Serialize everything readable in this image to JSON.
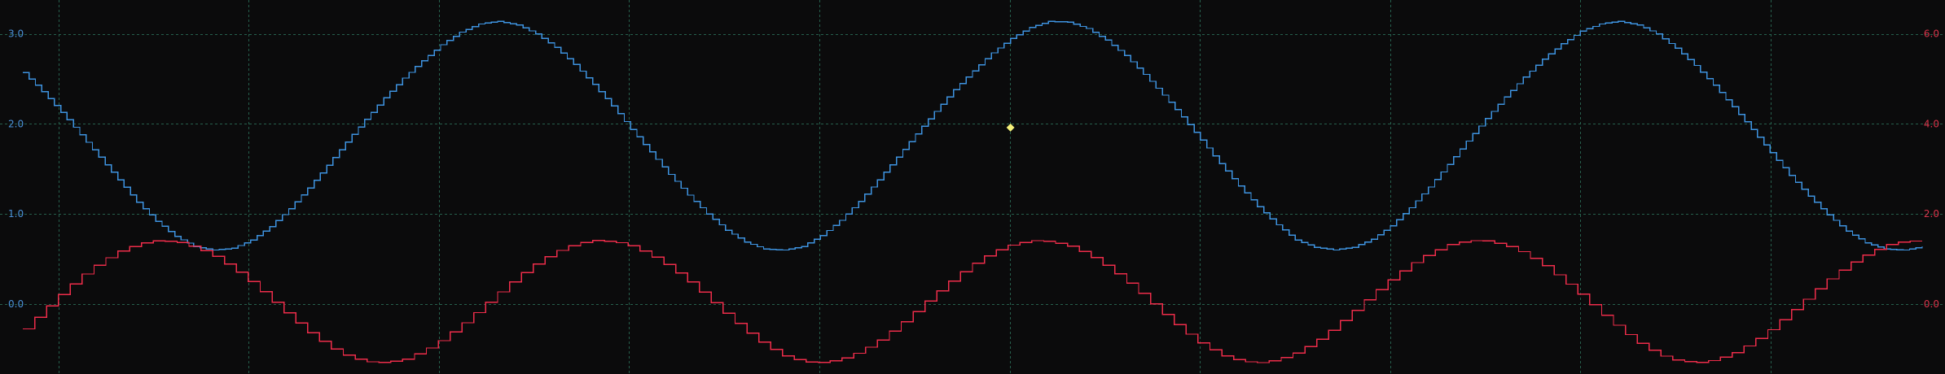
{
  "chart_data": {
    "type": "line",
    "grid": true,
    "background": "#0b0b0c",
    "grid_color": "#2a6a55",
    "cursor_color": "#f5f07a",
    "left_axis": {
      "ticks": [
        "0.0",
        "1.0",
        "2.0",
        "3.0"
      ],
      "range": [
        -0.65,
        3.25
      ],
      "color": "#4a90d9"
    },
    "right_axis": {
      "ticks": [
        "0.0",
        "2.0",
        "4.0",
        "6.0"
      ],
      "range": [
        -1.3,
        6.5
      ],
      "color": "#d8344a"
    },
    "x_range": [
      0,
      1000
    ],
    "series": [
      {
        "axis": "left",
        "color": "#3e93e0",
        "step": true,
        "stairs": 300,
        "x": [
          0,
          10,
          20,
          30,
          40,
          50,
          60,
          70,
          80,
          90,
          100,
          110,
          120,
          130,
          140,
          150,
          160,
          170,
          180,
          190,
          200,
          210,
          220,
          230,
          240,
          250,
          260,
          270,
          280,
          290,
          300,
          310,
          320,
          330,
          340,
          350,
          360,
          370,
          380,
          390,
          400,
          410,
          420,
          430,
          440,
          450,
          460,
          470,
          480,
          490,
          500,
          510,
          520,
          530,
          540,
          550,
          560,
          570,
          580,
          590,
          600,
          610,
          620,
          630,
          640,
          650,
          660,
          670,
          680,
          690,
          700,
          710,
          720,
          730,
          740,
          750,
          760,
          770,
          780,
          790,
          800,
          810,
          820,
          830,
          840,
          850,
          860,
          870,
          880,
          890,
          900,
          910,
          920,
          930,
          940,
          950,
          960,
          970,
          980,
          990,
          1000
        ],
        "y": [
          2.57,
          2.36,
          2.13,
          1.88,
          1.63,
          1.38,
          1.13,
          0.92,
          0.75,
          0.64,
          0.6,
          0.62,
          0.71,
          0.86,
          1.06,
          1.29,
          1.54,
          1.8,
          2.05,
          2.29,
          2.51,
          2.7,
          2.88,
          3.02,
          3.11,
          3.14,
          3.1,
          3.0,
          2.85,
          2.66,
          2.44,
          2.2,
          1.94,
          1.69,
          1.44,
          1.21,
          1.0,
          0.82,
          0.69,
          0.61,
          0.6,
          0.64,
          0.76,
          0.93,
          1.14,
          1.38,
          1.63,
          1.89,
          2.14,
          2.38,
          2.59,
          2.79,
          2.95,
          3.07,
          3.14,
          3.13,
          3.06,
          2.93,
          2.76,
          2.55,
          2.32,
          2.08,
          1.82,
          1.56,
          1.31,
          1.08,
          0.88,
          0.71,
          0.63,
          0.6,
          0.63,
          0.72,
          0.87,
          1.07,
          1.3,
          1.55,
          1.81,
          2.06,
          2.3,
          2.52,
          2.72,
          2.89,
          3.03,
          3.11,
          3.14,
          3.1,
          3.0,
          2.84,
          2.65,
          2.43,
          2.19,
          1.94,
          1.68,
          1.43,
          1.2,
          0.99,
          0.81,
          0.68,
          0.61,
          0.6,
          0.64
        ]
      },
      {
        "axis": "right",
        "color": "#ee2c4a",
        "step": true,
        "stairs": 160,
        "x": [
          0,
          10,
          20,
          30,
          40,
          50,
          60,
          70,
          80,
          90,
          100,
          110,
          120,
          130,
          140,
          150,
          160,
          170,
          180,
          190,
          200,
          210,
          220,
          230,
          240,
          250,
          260,
          270,
          280,
          290,
          300,
          310,
          320,
          330,
          340,
          350,
          360,
          370,
          380,
          390,
          400,
          410,
          420,
          430,
          440,
          450,
          460,
          470,
          480,
          490,
          500,
          510,
          520,
          530,
          540,
          550,
          560,
          570,
          580,
          590,
          600,
          610,
          620,
          630,
          640,
          650,
          660,
          670,
          680,
          690,
          700,
          710,
          720,
          730,
          740,
          750,
          760,
          770,
          780,
          790,
          800,
          810,
          820,
          830,
          840,
          850,
          860,
          870,
          880,
          890,
          900,
          910,
          920,
          930,
          940,
          950,
          960,
          970,
          980,
          990,
          1000
        ],
        "y": [
          -0.55,
          -0.14,
          0.26,
          0.63,
          0.94,
          1.18,
          1.34,
          1.41,
          1.38,
          1.26,
          1.06,
          0.79,
          0.46,
          0.09,
          -0.29,
          -0.64,
          -0.94,
          -1.16,
          -1.28,
          -1.3,
          -1.22,
          -1.04,
          -0.78,
          -0.46,
          -0.1,
          0.27,
          0.62,
          0.93,
          1.17,
          1.34,
          1.41,
          1.39,
          1.28,
          1.08,
          0.81,
          0.49,
          0.13,
          -0.25,
          -0.61,
          -0.92,
          -1.15,
          -1.28,
          -1.3,
          -1.22,
          -1.05,
          -0.8,
          -0.48,
          -0.12,
          0.25,
          0.6,
          0.91,
          1.16,
          1.33,
          1.41,
          1.39,
          1.29,
          1.1,
          0.83,
          0.51,
          0.15,
          -0.23,
          -0.59,
          -0.9,
          -1.13,
          -1.27,
          -1.3,
          -1.23,
          -1.07,
          -0.82,
          -0.5,
          -0.14,
          0.23,
          0.58,
          0.89,
          1.14,
          1.32,
          1.41,
          1.4,
          1.3,
          1.12,
          0.85,
          0.53,
          0.18,
          -0.2,
          -0.56,
          -0.87,
          -1.12,
          -1.26,
          -1.3,
          -1.24,
          -1.08,
          -0.84,
          -0.53,
          -0.17,
          0.2,
          0.56,
          0.87,
          1.12,
          1.31,
          1.4,
          1.4
        ]
      }
    ],
    "cursor_point": {
      "x": 520,
      "y": 1.96,
      "axis": "left"
    }
  }
}
